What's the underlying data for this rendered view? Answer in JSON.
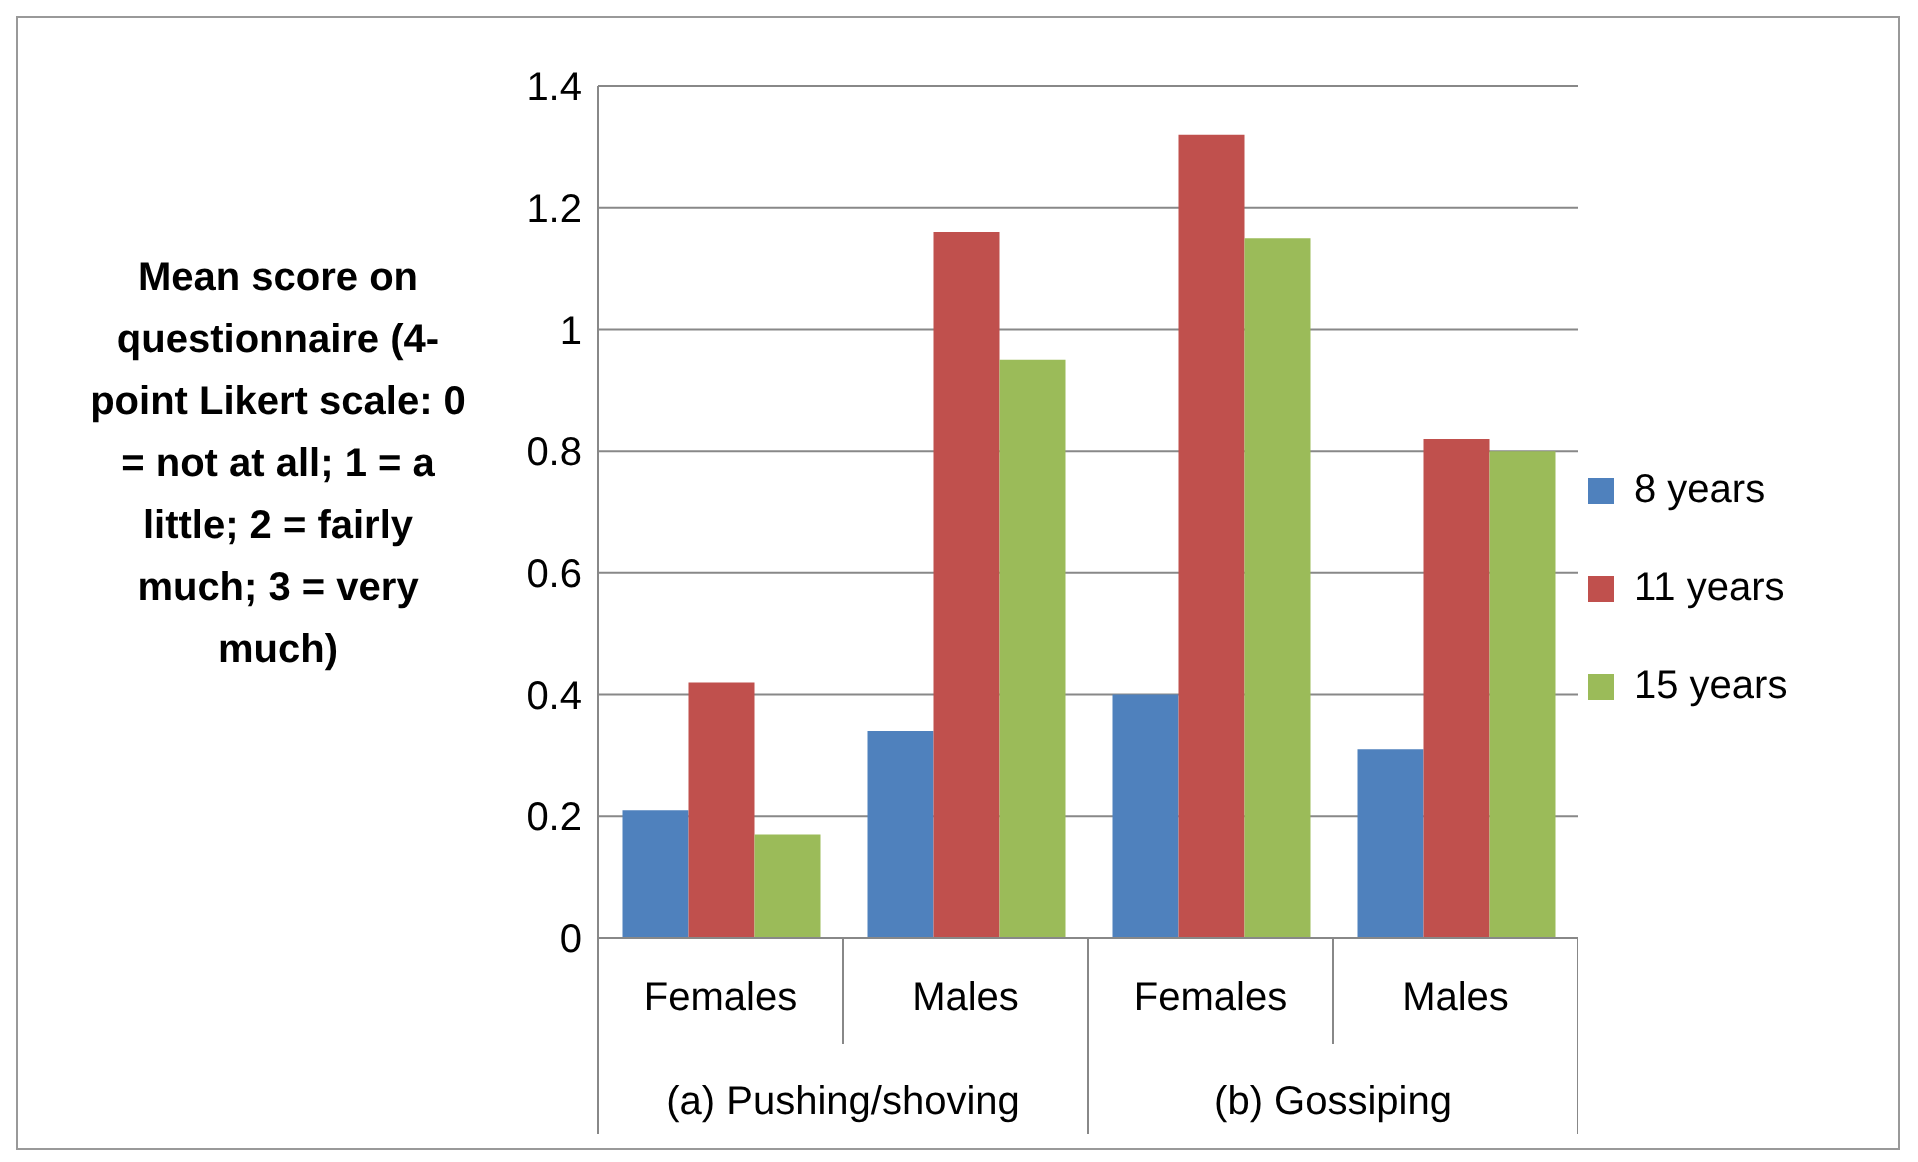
{
  "chart_data": {
    "type": "bar",
    "ylabel": "Mean score on questionnaire (4-point Likert scale: 0 = not at all; 1 = a little; 2 = fairly much; 3 = very much)",
    "categories": [
      "Females",
      "Males",
      "Females",
      "Males"
    ],
    "annotations": [
      "(a) Pushing/shoving",
      "(b) Gossiping"
    ],
    "series": [
      {
        "name": "8 years",
        "color": "#4f81bd",
        "values": [
          0.21,
          0.34,
          0.4,
          0.31
        ]
      },
      {
        "name": "11 years",
        "color": "#c0504d",
        "values": [
          0.42,
          1.16,
          1.32,
          0.82
        ]
      },
      {
        "name": "15 years",
        "color": "#9bbb59",
        "values": [
          0.17,
          0.95,
          1.15,
          0.8
        ]
      }
    ],
    "ylim": [
      0,
      1.4
    ],
    "yticks": [
      0,
      0.2,
      0.4,
      0.6,
      0.8,
      1,
      1.2,
      1.4
    ],
    "grid": "y",
    "legend": "right"
  }
}
